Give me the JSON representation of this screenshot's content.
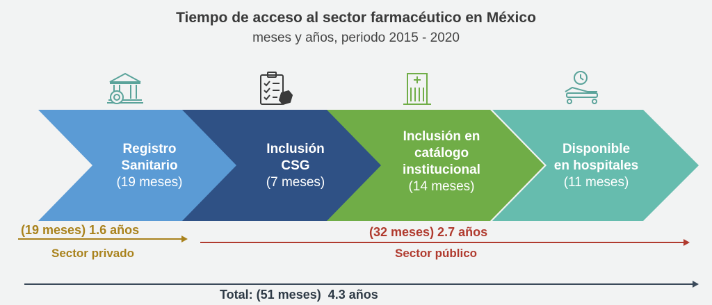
{
  "header": {
    "title": "Tiempo de acceso al sector farmacéutico en México",
    "subtitle": "meses y años, periodo 2015 - 2020"
  },
  "stages": [
    {
      "name_lines": [
        "Registro",
        "Sanitario"
      ],
      "duration": "(19 meses)",
      "color": "#5b9bd5",
      "icon": "government-building-icon"
    },
    {
      "name_lines": [
        "Inclusión",
        "CSG"
      ],
      "duration": "(7 meses)",
      "color": "#2f5185",
      "icon": "clipboard-checklist-icon"
    },
    {
      "name_lines": [
        "Inclusión en",
        "catálogo",
        "institucional"
      ],
      "duration": "(14 meses)",
      "color": "#70ad47",
      "icon": "hospital-building-icon"
    },
    {
      "name_lines": [
        "Disponible",
        "en hospitales"
      ],
      "duration": "(11 meses)",
      "color": "#66bcae",
      "icon": "hospital-bed-clock-icon"
    }
  ],
  "timeline": {
    "private": {
      "label": "(19 meses) 1.6 años",
      "sector": "Sector privado",
      "color": "#a9821c"
    },
    "public": {
      "label": "(32 meses) 2.7 años",
      "sector": "Sector público",
      "color": "#b03a2e"
    },
    "total": {
      "label": "Total: (51 meses)  4.3 años",
      "color": "#3b4a5a"
    }
  },
  "icon_color": "#5aa39a"
}
